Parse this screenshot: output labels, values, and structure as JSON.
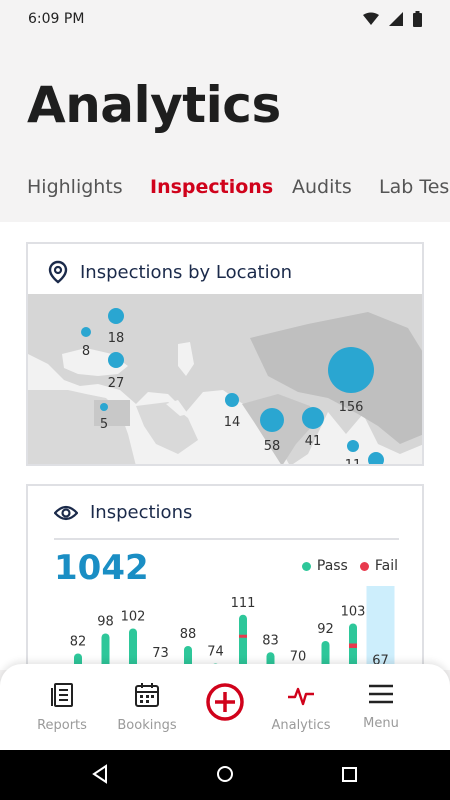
{
  "status_bar": {
    "time": "6:09 PM"
  },
  "page": {
    "title": "Analytics"
  },
  "tabs": [
    {
      "label": "Highlights"
    },
    {
      "label": "Inspections"
    },
    {
      "label": "Audits"
    },
    {
      "label": "Lab Tes"
    }
  ],
  "map_card": {
    "title": "Inspections by Location",
    "markers": [
      {
        "value": "18"
      },
      {
        "value": "8"
      },
      {
        "value": "27"
      },
      {
        "value": "5"
      },
      {
        "value": "14"
      },
      {
        "value": "58"
      },
      {
        "value": "41"
      },
      {
        "value": "156"
      },
      {
        "value": "11"
      }
    ]
  },
  "chart_card": {
    "title": "Inspections",
    "total": "1042",
    "legend": {
      "pass": "Pass",
      "fail": "Fail"
    }
  },
  "chart_data": {
    "type": "bar",
    "series": [
      {
        "name": "Pass",
        "values": [
          82,
          98,
          102,
          73,
          88,
          74,
          111,
          83,
          70,
          92,
          103,
          67
        ]
      },
      {
        "name": "Fail",
        "values": [
          0,
          0,
          0,
          0,
          0,
          0,
          2,
          0,
          0,
          0,
          3,
          0
        ]
      }
    ],
    "totals": [
      82,
      98,
      102,
      73,
      88,
      74,
      111,
      83,
      70,
      92,
      103,
      67
    ],
    "colors": {
      "pass": "#2ec79a",
      "fail": "#e83a4e",
      "highlight": "#cdeefc"
    }
  },
  "bottom_nav": {
    "items": [
      {
        "label": "Reports"
      },
      {
        "label": "Bookings"
      },
      {
        "label": ""
      },
      {
        "label": "Analytics"
      },
      {
        "label": "Menu"
      }
    ]
  },
  "colors": {
    "accent": "#d0021b",
    "primary": "#1a8ec4",
    "map_bubble": "#2aa6d1"
  }
}
